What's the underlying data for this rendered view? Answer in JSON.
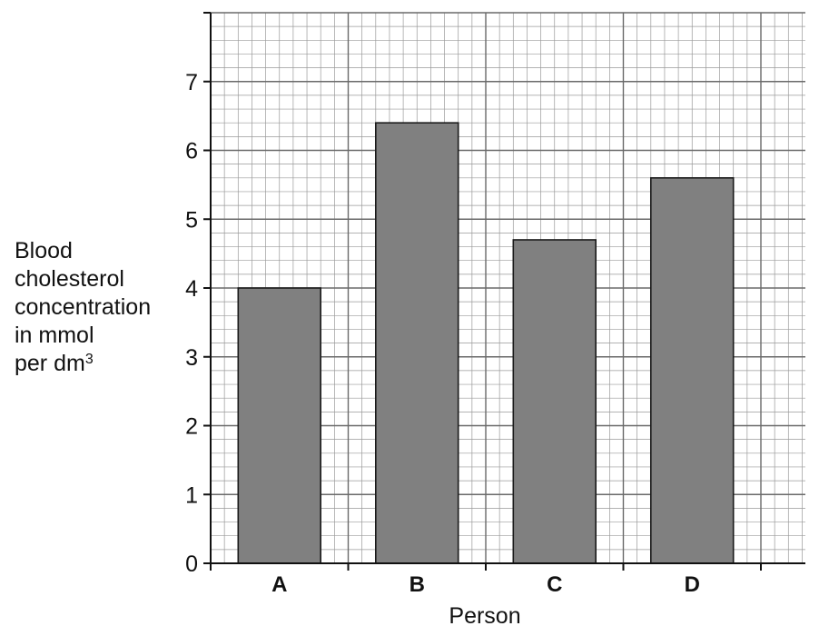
{
  "chart_data": {
    "type": "bar",
    "categories": [
      "A",
      "B",
      "C",
      "D"
    ],
    "values": [
      4.0,
      6.4,
      4.7,
      5.6
    ],
    "xlabel": "Person",
    "ylabel_lines": [
      "Blood",
      "cholesterol",
      "concentration",
      "in mmol",
      "per dm"
    ],
    "ylabel_superscript": "3",
    "yticks": [
      "0",
      "1",
      "2",
      "3",
      "4",
      "5",
      "6",
      "7"
    ],
    "ylim": [
      0,
      8
    ],
    "grid": true,
    "bar_color": "#808080",
    "grid_color": "#9a9a9a"
  }
}
